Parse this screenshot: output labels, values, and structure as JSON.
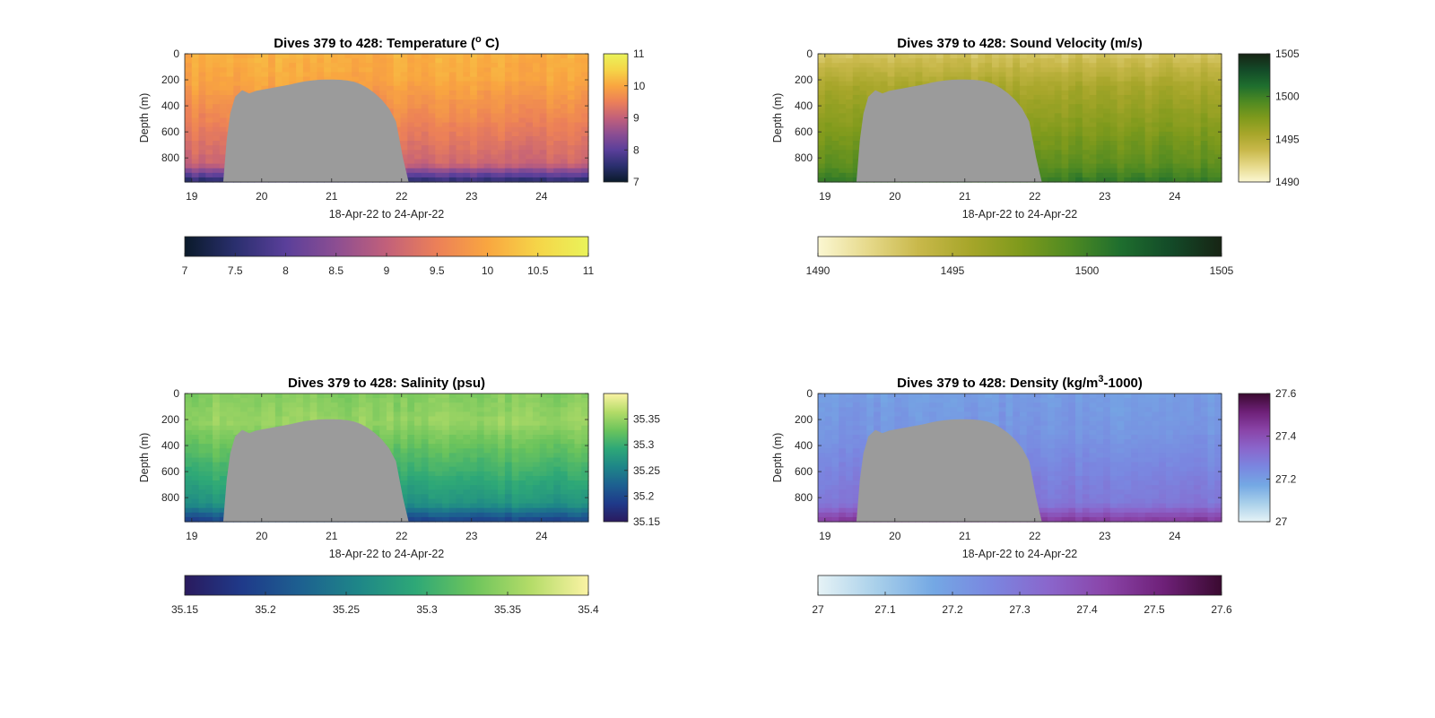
{
  "figure": {
    "background": "#ffffff",
    "mask_color": "#9b9b9b"
  },
  "chart_data": [
    {
      "type": "heatmap",
      "variable": "temperature",
      "title_main": "Dives 379 to 428: Temperature (",
      "title_sup": "o",
      "title_end": " C)",
      "xlabel": "18-Apr-22 to 24-Apr-22",
      "ylabel": "Depth (m)",
      "xlim": [
        18.9,
        24.67
      ],
      "ylim": [
        0,
        985
      ],
      "y_reversed": true,
      "x_ticks": [
        19,
        20,
        21,
        22,
        23,
        24
      ],
      "x_tick_labels": [
        "19",
        "20",
        "21",
        "22",
        "23",
        "24"
      ],
      "y_ticks": [
        0,
        200,
        400,
        600,
        800
      ],
      "y_tick_labels": [
        "0",
        "200",
        "400",
        "600",
        "800"
      ],
      "clim": [
        7,
        11
      ],
      "colormap": [
        "#0a1a2a",
        "#2a2f6e",
        "#5a3f9a",
        "#8c4e92",
        "#c2607a",
        "#ec8058",
        "#f9a640",
        "#f5d548",
        "#eaf35a"
      ],
      "vertical_colorbar_ticks": [
        7,
        8,
        9,
        10,
        11
      ],
      "vertical_colorbar_labels": [
        "7",
        "8",
        "9",
        "10",
        "11"
      ],
      "horizontal_colorbar_ticks": [
        7,
        7.5,
        8,
        8.5,
        9,
        9.5,
        10,
        10.5,
        11
      ],
      "horizontal_colorbar_labels": [
        "7",
        "7.5",
        "8",
        "8.5",
        "9",
        "9.5",
        "10",
        "10.5",
        "11"
      ],
      "profile": {
        "top": 10.1,
        "z1": 200,
        "v1": 10.0,
        "bottom": 9.1,
        "deep": 7.4
      },
      "grid": false
    },
    {
      "type": "heatmap",
      "variable": "sound_velocity",
      "title_main": "Dives 379 to 428: Sound Velocity (m/s)",
      "title_sup": "",
      "title_end": "",
      "xlabel": "18-Apr-22 to 24-Apr-22",
      "ylabel": "Depth (m)",
      "xlim": [
        18.9,
        24.67
      ],
      "ylim": [
        0,
        985
      ],
      "y_reversed": true,
      "x_ticks": [
        19,
        20,
        21,
        22,
        23,
        24
      ],
      "x_tick_labels": [
        "19",
        "20",
        "21",
        "22",
        "23",
        "24"
      ],
      "y_ticks": [
        0,
        200,
        400,
        600,
        800
      ],
      "y_tick_labels": [
        "0",
        "200",
        "400",
        "600",
        "800"
      ],
      "clim": [
        1490,
        1505
      ],
      "colormap": [
        "#fbf7d2",
        "#e6d98a",
        "#c8b84a",
        "#a7a62a",
        "#7f9a1c",
        "#4f8a22",
        "#1e6e2e",
        "#134a28",
        "#172414"
      ],
      "vertical_colorbar_ticks": [
        1490,
        1495,
        1500,
        1505
      ],
      "vertical_colorbar_labels": [
        "1490",
        "1495",
        "1500",
        "1505"
      ],
      "horizontal_colorbar_ticks": [
        1490,
        1495,
        1500,
        1505
      ],
      "horizontal_colorbar_labels": [
        "1490",
        "1495",
        "1500",
        "1505"
      ],
      "profile": {
        "top": 1493.0,
        "z1": 250,
        "v1": 1495.5,
        "bottom": 1498.8,
        "deep": 1500.5
      },
      "grid": false
    },
    {
      "type": "heatmap",
      "variable": "salinity",
      "title_main": "Dives 379 to 428: Salinity (psu)",
      "title_sup": "",
      "title_end": "",
      "xlabel": "18-Apr-22 to 24-Apr-22",
      "ylabel": "Depth (m)",
      "xlim": [
        18.9,
        24.67
      ],
      "ylim": [
        0,
        985
      ],
      "y_reversed": true,
      "x_ticks": [
        19,
        20,
        21,
        22,
        23,
        24
      ],
      "x_tick_labels": [
        "19",
        "20",
        "21",
        "22",
        "23",
        "24"
      ],
      "y_ticks": [
        0,
        200,
        400,
        600,
        800
      ],
      "y_tick_labels": [
        "0",
        "200",
        "400",
        "600",
        "800"
      ],
      "clim": [
        35.15,
        35.4
      ],
      "colormap": [
        "#2a1a5e",
        "#1f3a8a",
        "#1d6090",
        "#1e8688",
        "#2ea877",
        "#6cc45c",
        "#b4dc68",
        "#fbf3a4"
      ],
      "vertical_colorbar_ticks": [
        35.15,
        35.2,
        35.25,
        35.3,
        35.35
      ],
      "vertical_colorbar_labels": [
        "35.15",
        "35.2",
        "35.25",
        "35.3",
        "35.35"
      ],
      "horizontal_colorbar_ticks": [
        35.15,
        35.2,
        35.25,
        35.3,
        35.35,
        35.4
      ],
      "horizontal_colorbar_labels": [
        "35.15",
        "35.2",
        "35.25",
        "35.3",
        "35.35",
        "35.4"
      ],
      "profile": {
        "top": 35.34,
        "z1": 220,
        "v1": 35.35,
        "bottom": 35.27,
        "deep": 35.19
      },
      "grid": false
    },
    {
      "type": "heatmap",
      "variable": "density",
      "title_main": "Dives 379 to 428: Density (kg/m",
      "title_sup": "3",
      "title_end": "-1000)",
      "xlabel": "18-Apr-22 to 24-Apr-22",
      "ylabel": "Depth (m)",
      "xlim": [
        18.9,
        24.67
      ],
      "ylim": [
        0,
        985
      ],
      "y_reversed": true,
      "x_ticks": [
        19,
        20,
        21,
        22,
        23,
        24
      ],
      "x_tick_labels": [
        "19",
        "20",
        "21",
        "22",
        "23",
        "24"
      ],
      "y_ticks": [
        0,
        200,
        400,
        600,
        800
      ],
      "y_tick_labels": [
        "0",
        "200",
        "400",
        "600",
        "800"
      ],
      "clim": [
        27,
        27.6
      ],
      "colormap": [
        "#e6f3f6",
        "#a9d0ea",
        "#74a8e4",
        "#7a86e0",
        "#8a66cc",
        "#8a44a8",
        "#6e2078",
        "#3a0a30"
      ],
      "vertical_colorbar_ticks": [
        27,
        27.2,
        27.4,
        27.6
      ],
      "vertical_colorbar_labels": [
        "27",
        "27.2",
        "27.4",
        "27.6"
      ],
      "horizontal_colorbar_ticks": [
        27,
        27.1,
        27.2,
        27.3,
        27.4,
        27.5,
        27.6
      ],
      "horizontal_colorbar_labels": [
        "27",
        "27.1",
        "27.2",
        "27.3",
        "27.4",
        "27.5",
        "27.6"
      ],
      "profile": {
        "top": 27.2,
        "z1": 300,
        "v1": 27.22,
        "bottom": 27.3,
        "deep": 27.46
      },
      "grid": false
    }
  ],
  "mask_outline": {
    "x": [
      19.45,
      19.5,
      19.55,
      19.62,
      19.72,
      19.82,
      19.92,
      20.02,
      20.12,
      20.22,
      20.32,
      20.42,
      20.52,
      20.62,
      20.72,
      20.82,
      20.92,
      21.02,
      21.12,
      21.22,
      21.32,
      21.42,
      21.52,
      21.62,
      21.72,
      21.82,
      21.92,
      22.02,
      22.1
    ],
    "depth_top": [
      985,
      660,
      460,
      330,
      280,
      305,
      285,
      275,
      265,
      255,
      245,
      235,
      222,
      212,
      205,
      200,
      198,
      198,
      200,
      205,
      215,
      235,
      265,
      305,
      355,
      420,
      520,
      800,
      985
    ]
  }
}
